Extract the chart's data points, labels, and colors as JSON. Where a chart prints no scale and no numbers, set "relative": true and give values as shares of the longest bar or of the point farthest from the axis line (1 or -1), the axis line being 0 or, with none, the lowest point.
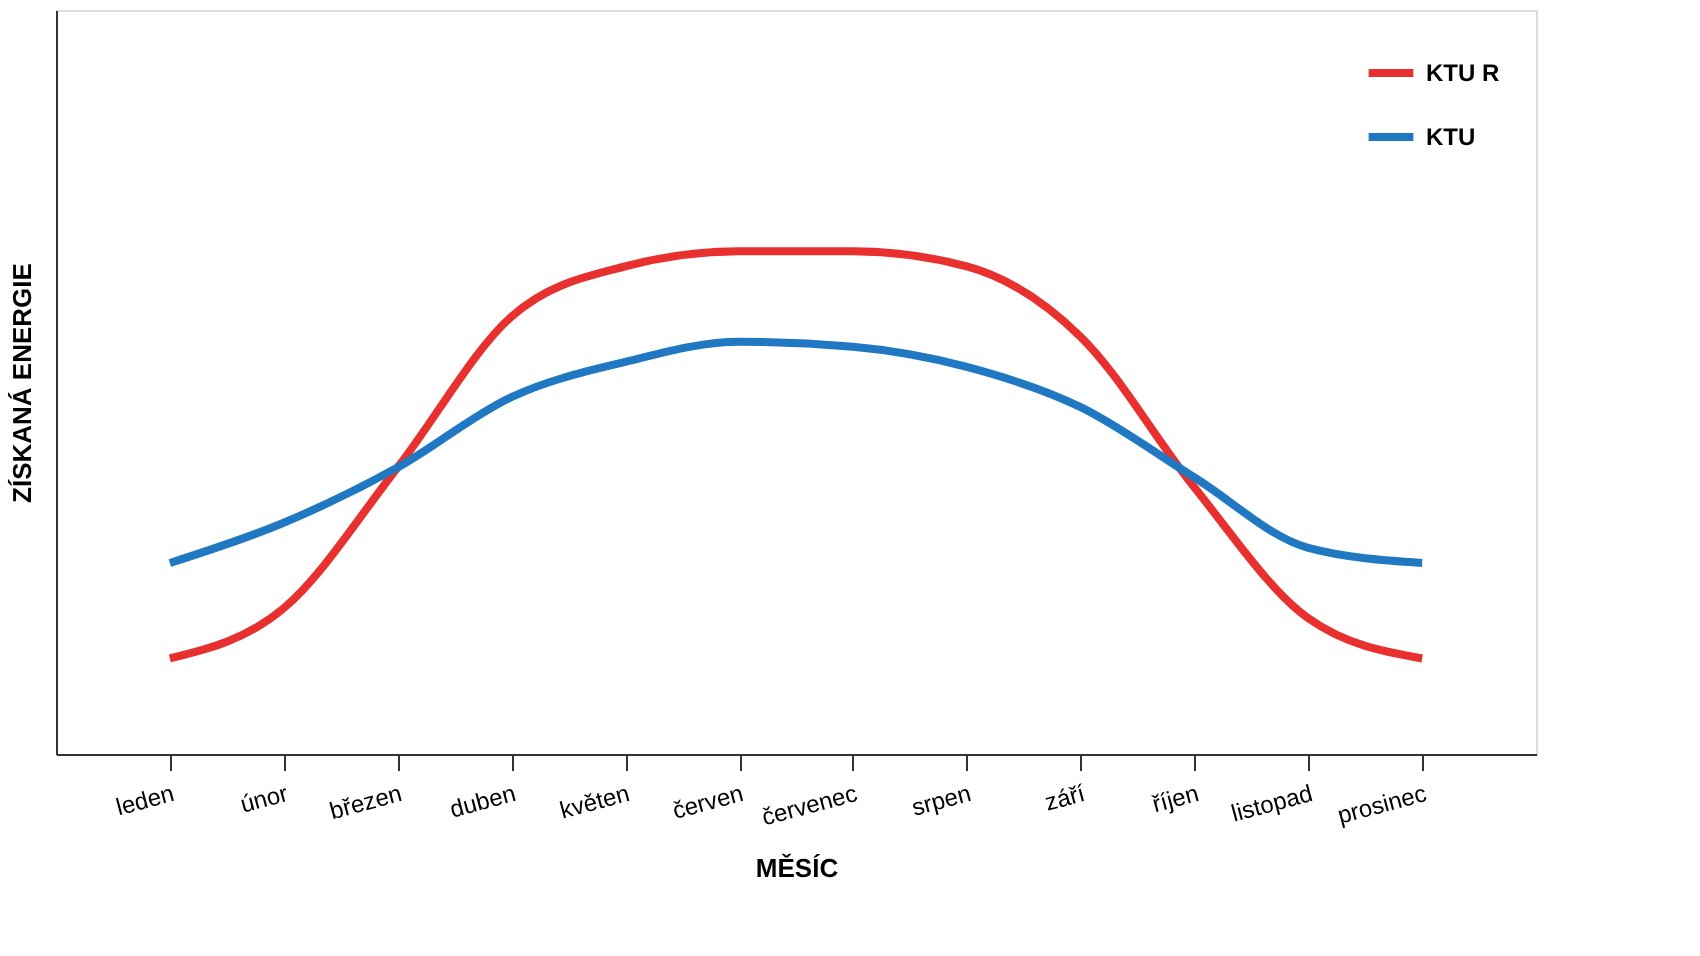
{
  "chart_data": {
    "type": "line",
    "relative": true,
    "xlabel": "MĚSÍC",
    "ylabel": "ZÍSKANÁ ENERGIE",
    "categories": [
      "leden",
      "únor",
      "březen",
      "duben",
      "květen",
      "červen",
      "červenec",
      "srpen",
      "září",
      "říjen",
      "listopad",
      "prosinec"
    ],
    "series": [
      {
        "name": "KTU R",
        "color": "#e8312f",
        "values": [
          0.19,
          0.29,
          0.57,
          0.87,
          0.97,
          1.0,
          1.0,
          0.97,
          0.83,
          0.53,
          0.27,
          0.19
        ]
      },
      {
        "name": "KTU",
        "color": "#1f78c1",
        "values": [
          0.38,
          0.46,
          0.57,
          0.71,
          0.78,
          0.82,
          0.81,
          0.77,
          0.69,
          0.55,
          0.41,
          0.38
        ]
      }
    ],
    "legend": "top right",
    "grid": false,
    "marker": "none",
    "line_style": "solid"
  }
}
